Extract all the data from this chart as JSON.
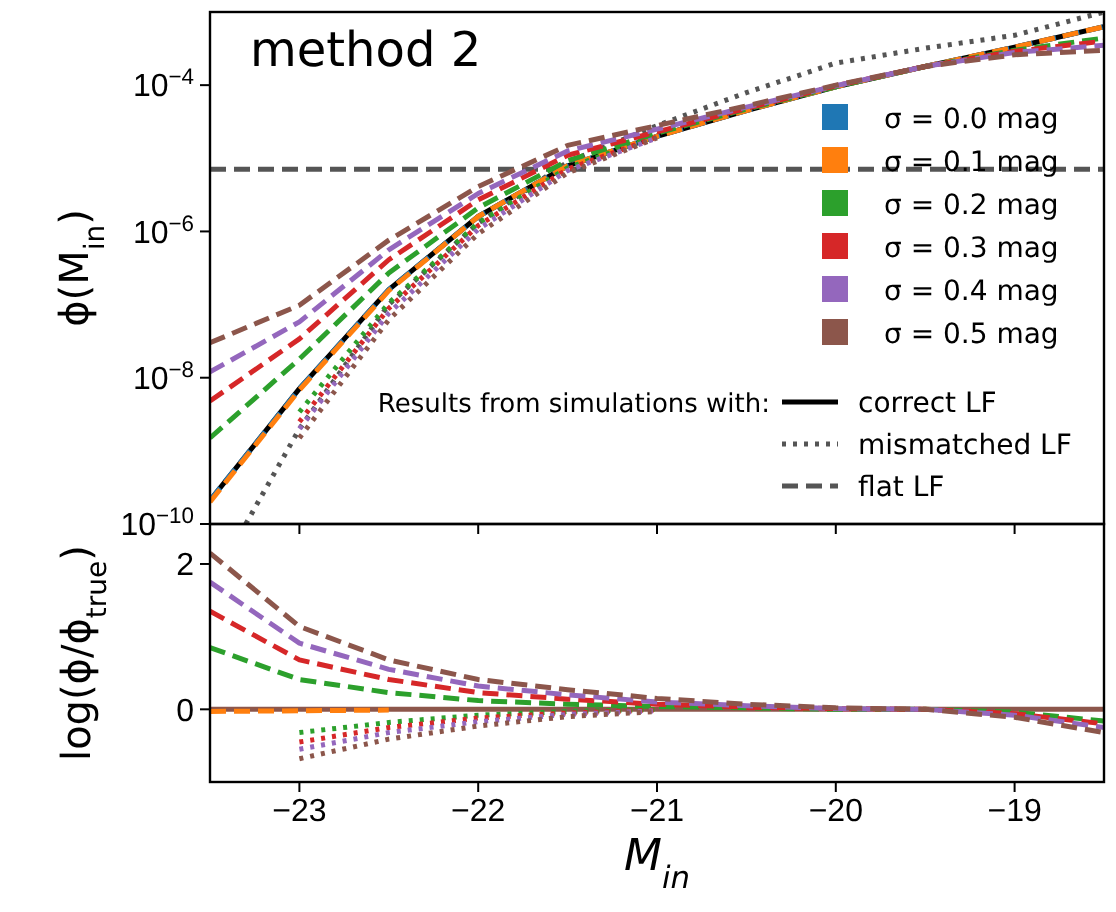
{
  "chart_data": [
    {
      "type": "line",
      "title": "method 2",
      "ylabel": "ϕ(M$_{in}$)",
      "legend_title": "Results from simulations with:",
      "legend": "right",
      "log": "y",
      "tick_labels": "y",
      "x": [
        -23.5,
        -23,
        -22.5,
        -22,
        -21.5,
        -21,
        -20.5,
        -20,
        -19.5,
        -19,
        -18.5
      ],
      "xlim": [
        -23.5,
        -18.5
      ],
      "xticks": [
        -23,
        -22,
        -21,
        -20,
        -19
      ],
      "ylim": [
        1e-10,
        0.001
      ],
      "yticks": [
        {
          "value": 0.0001,
          "label": "10$^{−4}$"
        },
        {
          "value": 1e-06,
          "label": "10$^{−6}$"
        },
        {
          "value": 1e-08,
          "label": "10$^{−8}$"
        },
        {
          "value": 1e-10,
          "label": "10$^{−10}$"
        }
      ],
      "series": [
        {
          "name": "correct LF",
          "color": "#000000",
          "line_style": "solid",
          "values": [
            2.1e-10,
            7.1e-09,
            1.6e-07,
            1.6e-06,
            7.9e-06,
            2e-05,
            4.5e-05,
            9.5e-05,
            0.00018,
            0.00033,
            0.00063
          ]
        },
        {
          "name": "mismatched LF",
          "color": "#555555",
          "line_style": "dotted",
          "x": [
            -23.3,
            -23,
            -22.5,
            -22,
            -21.5,
            -21,
            -20.5,
            -20,
            -19.5,
            -19,
            -18.5
          ],
          "values": [
            1e-10,
            2e-09,
            1e-07,
            1.3e-06,
            8.9e-06,
            2.8e-05,
            7.9e-05,
            0.0002,
            0.00032,
            0.00048,
            0.001
          ]
        },
        {
          "name": "flat LF",
          "color": "#555555",
          "line_style": "dashed",
          "x": [
            -23.5,
            -18.5
          ],
          "values": [
            7.1e-06,
            7.1e-06
          ]
        },
        {
          "name": "σ = 0.0 mag",
          "color": "#1f77b4",
          "line_style": "dashed",
          "values": [
            2.1e-10,
            7.1e-09,
            1.6e-07,
            1.6e-06,
            7.9e-06,
            2e-05,
            4.5e-05,
            9.5e-05,
            0.00018,
            0.00033,
            0.00063
          ]
        },
        {
          "name": "σ = 0.1 mag",
          "color": "#ff7f0e",
          "line_style": "dashed",
          "values": [
            2e-10,
            6.8e-09,
            1.55e-07,
            1.6e-06,
            7.9e-06,
            2e-05,
            4.5e-05,
            9.5e-05,
            0.00018,
            0.00033,
            0.00063
          ]
        },
        {
          "name": "σ = 0.2 mag",
          "color": "#2ca02c",
          "line_style": "dashed",
          "values": [
            1.5e-09,
            1.8e-08,
            2.7e-07,
            2.1e-06,
            9.3e-06,
            2.2e-05,
            4.7e-05,
            9.5e-05,
            0.00018,
            0.0003,
            0.00044
          ]
        },
        {
          "name": "σ = 0.3 mag",
          "color": "#d62728",
          "line_style": "dashed",
          "values": [
            4.8e-09,
            3.4e-08,
            4.1e-07,
            2.7e-06,
            1.1e-05,
            2.3e-05,
            4.8e-05,
            9.8e-05,
            0.00018,
            0.00029,
            0.0004
          ]
        },
        {
          "name": "σ = 0.4 mag",
          "color": "#9467bd",
          "line_style": "dashed",
          "values": [
            1.2e-08,
            5.8e-08,
            5.6e-07,
            3.3e-06,
            1.26e-05,
            2.5e-05,
            5e-05,
            9.8e-05,
            0.00018,
            0.00028,
            0.00035
          ]
        },
        {
          "name": "σ = 0.5 mag",
          "color": "#8c564b",
          "line_style": "dashed",
          "values": [
            3e-08,
            9.8e-08,
            7.6e-07,
            4.1e-06,
            1.5e-05,
            2.8e-05,
            5.2e-05,
            0.0001,
            0.00018,
            0.00026,
            0.0003
          ]
        },
        {
          "color": "#2ca02c",
          "line_style": "dotted",
          "x": [
            -23,
            -22.5,
            -22,
            -21.5,
            -21
          ],
          "values": [
            3.4e-09,
            1.05e-07,
            1.3e-06,
            7.4e-06,
            2e-05
          ]
        },
        {
          "color": "#d62728",
          "line_style": "dotted",
          "x": [
            -23,
            -22.5,
            -22,
            -21.5,
            -21
          ],
          "values": [
            2.5e-09,
            8.9e-08,
            1.2e-06,
            7.1e-06,
            1.95e-05
          ]
        },
        {
          "color": "#9467bd",
          "line_style": "dotted",
          "x": [
            -23,
            -22.5,
            -22,
            -21.5,
            -21
          ],
          "values": [
            2e-09,
            7.6e-08,
            1.07e-06,
            6.8e-06,
            1.9e-05
          ]
        },
        {
          "color": "#8c564b",
          "line_style": "dotted",
          "x": [
            -23,
            -22.5,
            -22,
            -21.5,
            -21
          ],
          "values": [
            1.5e-09,
            6.2e-08,
            9.3e-07,
            6.3e-06,
            1.9e-05
          ]
        }
      ]
    },
    {
      "type": "line",
      "xlabel": "M$_{in}$",
      "ylabel": "log(ϕ/ϕ$_{true}$)",
      "x": [
        -23.5,
        -23,
        -22.5,
        -22,
        -21.5,
        -21,
        -20.5,
        -20,
        -19.5,
        -19,
        -18.5
      ],
      "xlim": [
        -23.5,
        -18.5
      ],
      "xticks": [
        -23,
        -22,
        -21,
        -20,
        -19
      ],
      "ylim": [
        -1,
        2.55
      ],
      "yticks": [
        0,
        2
      ],
      "series": [
        {
          "color": "#8c564b",
          "line_style": "solid",
          "values": [
            0,
            0,
            0,
            0,
            0,
            0,
            0,
            0,
            0,
            0,
            0
          ]
        },
        {
          "color": "#ff7f0e",
          "line_style": "dashed",
          "values": [
            -0.03,
            -0.02,
            -0.01,
            null,
            null,
            null,
            null,
            null,
            null,
            null,
            null
          ]
        },
        {
          "color": "#2ca02c",
          "line_style": "dashed",
          "values": [
            0.85,
            0.41,
            0.23,
            0.12,
            0.07,
            0.04,
            0.02,
            0,
            0,
            -0.04,
            -0.16
          ]
        },
        {
          "color": "#d62728",
          "line_style": "dashed",
          "values": [
            1.35,
            0.68,
            0.41,
            0.23,
            0.14,
            0.07,
            0.03,
            0.01,
            0,
            -0.06,
            -0.2
          ]
        },
        {
          "color": "#9467bd",
          "line_style": "dashed",
          "values": [
            1.75,
            0.91,
            0.55,
            0.32,
            0.2,
            0.1,
            0.05,
            0.01,
            0,
            -0.08,
            -0.25
          ]
        },
        {
          "color": "#8c564b",
          "line_style": "dashed",
          "values": [
            2.15,
            1.14,
            0.68,
            0.41,
            0.27,
            0.15,
            0.07,
            0.02,
            0,
            -0.11,
            -0.32
          ]
        },
        {
          "color": "#2ca02c",
          "line_style": "dotted",
          "x": [
            -23,
            -22.5,
            -22,
            -21.5,
            -21
          ],
          "values": [
            -0.32,
            -0.18,
            -0.08,
            -0.03,
            0
          ]
        },
        {
          "color": "#d62728",
          "line_style": "dotted",
          "x": [
            -23,
            -22.5,
            -22,
            -21.5,
            -21
          ],
          "values": [
            -0.45,
            -0.25,
            -0.12,
            -0.05,
            -0.01
          ]
        },
        {
          "color": "#9467bd",
          "line_style": "dotted",
          "x": [
            -23,
            -22.5,
            -22,
            -21.5,
            -21
          ],
          "values": [
            -0.55,
            -0.32,
            -0.17,
            -0.07,
            -0.02
          ]
        },
        {
          "color": "#8c564b",
          "line_style": "dotted",
          "x": [
            -23,
            -22.5,
            -22,
            -21.5,
            -21
          ],
          "values": [
            -0.68,
            -0.41,
            -0.23,
            -0.1,
            -0.03
          ]
        }
      ]
    }
  ]
}
